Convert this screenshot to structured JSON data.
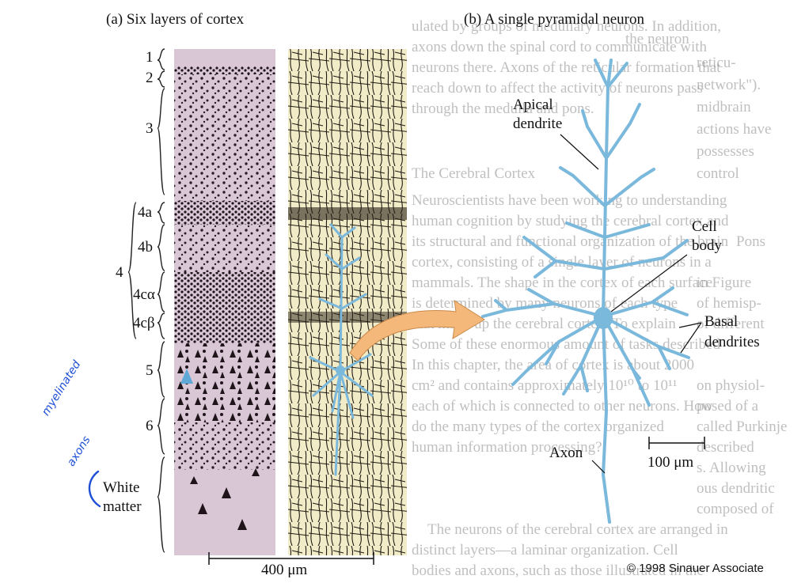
{
  "panel_a": {
    "title": "(a) Six layers of cortex",
    "layers": [
      "1",
      "2",
      "3",
      "4a",
      "4b",
      "4",
      "4cα",
      "4cβ",
      "5",
      "6"
    ],
    "white_matter": [
      "White",
      "matter"
    ],
    "scale_bar": "400 μm"
  },
  "panel_b": {
    "title": "(b) A single pyramidal neuron",
    "labels": {
      "apical": [
        "Apical",
        "dendrite"
      ],
      "cell_body": [
        "Cell",
        "body"
      ],
      "basal": [
        "Basal",
        "dendrites"
      ],
      "axon": "Axon"
    },
    "scale_bar": "100 μm"
  },
  "annotation": [
    "myelinated",
    "axons"
  ],
  "credit": "© 1998 Sinauer Associate",
  "colors": {
    "neuron": "#7ab8dc",
    "arrow": "#f4b97a",
    "nissl_bg": "#d8c8d6",
    "golgi_bg": "#f1ebc8"
  }
}
